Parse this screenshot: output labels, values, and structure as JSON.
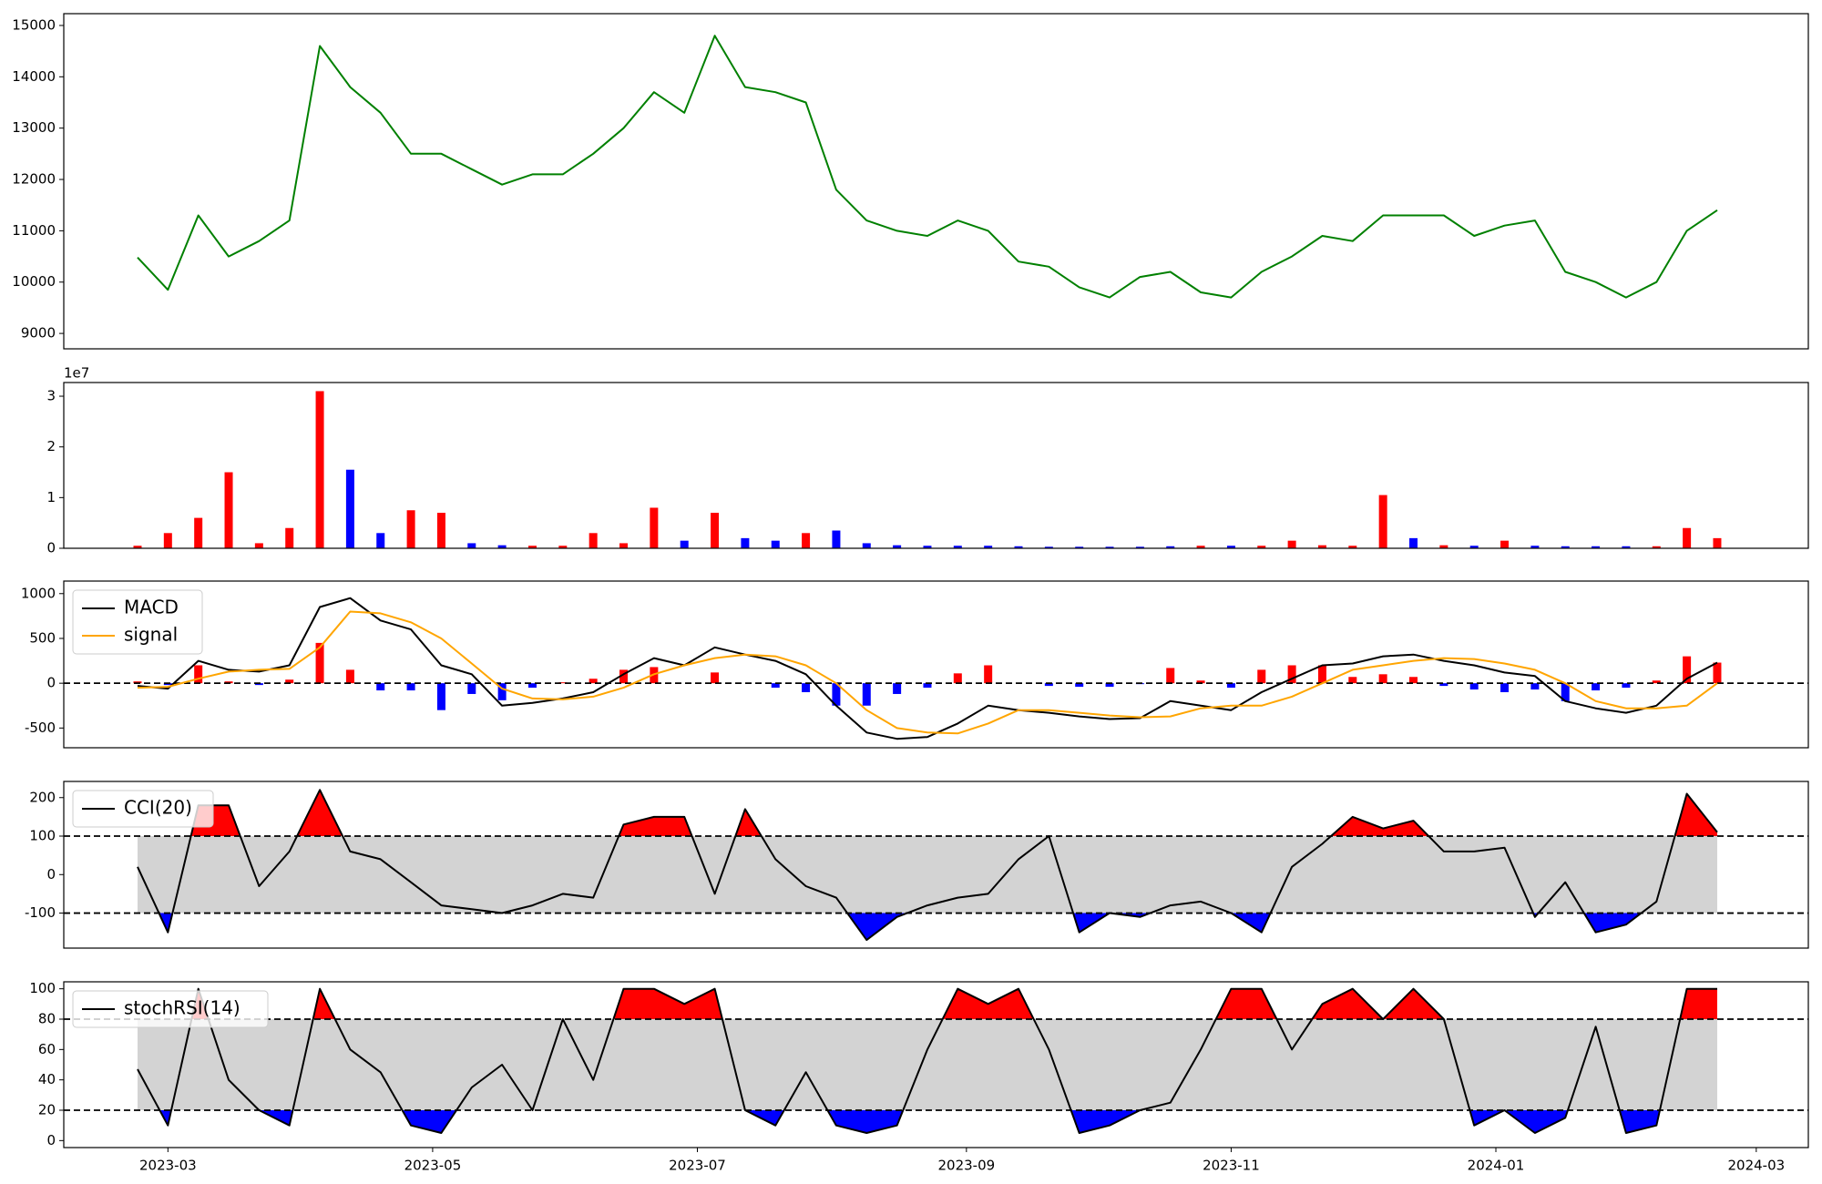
{
  "chart_data": [
    {
      "type": "line",
      "x": [
        "2023-02-22",
        "2023-03-01",
        "2023-03-08",
        "2023-03-15",
        "2023-03-22",
        "2023-03-29",
        "2023-04-05",
        "2023-04-12",
        "2023-04-19",
        "2023-04-26",
        "2023-05-03",
        "2023-05-10",
        "2023-05-17",
        "2023-05-24",
        "2023-05-31",
        "2023-06-07",
        "2023-06-14",
        "2023-06-21",
        "2023-06-28",
        "2023-07-05",
        "2023-07-12",
        "2023-07-19",
        "2023-07-26",
        "2023-08-02",
        "2023-08-09",
        "2023-08-16",
        "2023-08-23",
        "2023-08-30",
        "2023-09-06",
        "2023-09-13",
        "2023-09-20",
        "2023-09-27",
        "2023-10-04",
        "2023-10-11",
        "2023-10-18",
        "2023-10-25",
        "2023-11-01",
        "2023-11-08",
        "2023-11-15",
        "2023-11-22",
        "2023-11-29",
        "2023-12-06",
        "2023-12-13",
        "2023-12-20",
        "2023-12-27",
        "2024-01-03",
        "2024-01-10",
        "2024-01-17",
        "2024-01-24",
        "2024-01-31",
        "2024-02-07",
        "2024-02-14",
        "2024-02-21"
      ],
      "values": [
        10480,
        9850,
        11300,
        10500,
        10800,
        11200,
        14600,
        13800,
        13300,
        12500,
        12500,
        12200,
        11900,
        12100,
        12100,
        12500,
        13000,
        13700,
        13300,
        14800,
        13800,
        13700,
        13500,
        11800,
        11200,
        11000,
        10900,
        11200,
        11000,
        10400,
        10300,
        9900,
        9700,
        10100,
        10200,
        9800,
        9700,
        10200,
        10500,
        10900,
        10800,
        11300,
        11300,
        11300,
        10900,
        11100,
        11200,
        10200,
        10000,
        9700,
        10000,
        11000,
        11400
      ],
      "color": "green",
      "xlim": [
        "2023-02-05",
        "2024-03-13"
      ],
      "ylim": [
        8700,
        15230
      ],
      "yticks": [
        9000,
        10000,
        11000,
        12000,
        13000,
        14000,
        15000
      ]
    },
    {
      "type": "bar",
      "x": [
        "2023-02-22",
        "2023-03-01",
        "2023-03-08",
        "2023-03-15",
        "2023-03-22",
        "2023-03-29",
        "2023-04-05",
        "2023-04-12",
        "2023-04-19",
        "2023-04-26",
        "2023-05-03",
        "2023-05-10",
        "2023-05-17",
        "2023-05-24",
        "2023-05-31",
        "2023-06-07",
        "2023-06-14",
        "2023-06-21",
        "2023-06-28",
        "2023-07-05",
        "2023-07-12",
        "2023-07-19",
        "2023-07-26",
        "2023-08-02",
        "2023-08-09",
        "2023-08-16",
        "2023-08-23",
        "2023-08-30",
        "2023-09-06",
        "2023-09-13",
        "2023-09-20",
        "2023-09-27",
        "2023-10-04",
        "2023-10-11",
        "2023-10-18",
        "2023-10-25",
        "2023-11-01",
        "2023-11-08",
        "2023-11-15",
        "2023-11-22",
        "2023-11-29",
        "2023-12-06",
        "2023-12-13",
        "2023-12-20",
        "2023-12-27",
        "2024-01-03",
        "2024-01-10",
        "2024-01-17",
        "2024-01-24",
        "2024-01-31",
        "2024-02-07",
        "2024-02-14",
        "2024-02-21"
      ],
      "values": [
        0.05,
        0.3,
        0.6,
        1.5,
        0.1,
        0.4,
        3.1,
        1.55,
        0.3,
        0.75,
        0.7,
        0.1,
        0.06,
        0.05,
        0.05,
        0.3,
        0.1,
        0.8,
        0.15,
        0.7,
        0.2,
        0.15,
        0.3,
        0.35,
        0.1,
        0.06,
        0.05,
        0.05,
        0.05,
        0.04,
        0.03,
        0.03,
        0.03,
        0.03,
        0.04,
        0.05,
        0.05,
        0.05,
        0.15,
        0.06,
        0.05,
        1.05,
        0.2,
        0.06,
        0.05,
        0.15,
        0.05,
        0.04,
        0.04,
        0.04,
        0.04,
        0.4,
        0.2
      ],
      "colors": [
        "red",
        "red",
        "red",
        "red",
        "red",
        "red",
        "red",
        "blue",
        "blue",
        "red",
        "red",
        "blue",
        "blue",
        "red",
        "red",
        "red",
        "red",
        "red",
        "blue",
        "red",
        "blue",
        "blue",
        "red",
        "blue",
        "blue",
        "blue",
        "blue",
        "blue",
        "blue",
        "blue",
        "blue",
        "blue",
        "blue",
        "blue",
        "blue",
        "red",
        "blue",
        "red",
        "red",
        "red",
        "red",
        "red",
        "blue",
        "red",
        "blue",
        "red",
        "blue",
        "blue",
        "blue",
        "blue",
        "red",
        "red",
        "red"
      ],
      "offset_label": "1e7",
      "xlim": [
        "2023-02-05",
        "2024-03-13"
      ],
      "ylim": [
        0,
        3.27
      ],
      "yticks": [
        0,
        1,
        2,
        3
      ]
    },
    {
      "type": "macd",
      "x": [
        "2023-02-22",
        "2023-03-01",
        "2023-03-08",
        "2023-03-15",
        "2023-03-22",
        "2023-03-29",
        "2023-04-05",
        "2023-04-12",
        "2023-04-19",
        "2023-04-26",
        "2023-05-03",
        "2023-05-10",
        "2023-05-17",
        "2023-05-24",
        "2023-05-31",
        "2023-06-07",
        "2023-06-14",
        "2023-06-21",
        "2023-06-28",
        "2023-07-05",
        "2023-07-12",
        "2023-07-19",
        "2023-07-26",
        "2023-08-02",
        "2023-08-09",
        "2023-08-16",
        "2023-08-23",
        "2023-08-30",
        "2023-09-06",
        "2023-09-13",
        "2023-09-20",
        "2023-09-27",
        "2023-10-04",
        "2023-10-11",
        "2023-10-18",
        "2023-10-25",
        "2023-11-01",
        "2023-11-08",
        "2023-11-15",
        "2023-11-22",
        "2023-11-29",
        "2023-12-06",
        "2023-12-13",
        "2023-12-20",
        "2023-12-27",
        "2024-01-03",
        "2024-01-10",
        "2024-01-17",
        "2024-01-24",
        "2024-01-31",
        "2024-02-07",
        "2024-02-14",
        "2024-02-21"
      ],
      "series": [
        {
          "name": "MACD",
          "color": "black",
          "values": [
            -30,
            -60,
            250,
            150,
            130,
            200,
            850,
            950,
            700,
            600,
            200,
            100,
            -250,
            -220,
            -170,
            -100,
            100,
            280,
            200,
            400,
            320,
            250,
            100,
            -250,
            -550,
            -620,
            -600,
            -450,
            -250,
            -300,
            -330,
            -370,
            -400,
            -390,
            -200,
            -250,
            -300,
            -100,
            50,
            200,
            220,
            300,
            320,
            250,
            200,
            120,
            80,
            -200,
            -280,
            -330,
            -250,
            50,
            230
          ]
        },
        {
          "name": "signal",
          "color": "orange",
          "values": [
            -50,
            -40,
            50,
            130,
            150,
            160,
            400,
            800,
            780,
            680,
            500,
            220,
            -60,
            -170,
            -180,
            -150,
            -50,
            100,
            200,
            280,
            320,
            300,
            200,
            0,
            -300,
            -500,
            -550,
            -560,
            -450,
            -300,
            -300,
            -330,
            -360,
            -380,
            -370,
            -280,
            -250,
            -250,
            -150,
            0,
            150,
            200,
            250,
            280,
            270,
            220,
            150,
            0,
            -200,
            -280,
            -280,
            -250,
            0
          ]
        }
      ],
      "histogram": {
        "values": [
          20,
          -20,
          200,
          20,
          -20,
          40,
          450,
          150,
          -80,
          -80,
          -300,
          -120,
          -190,
          -50,
          10,
          50,
          150,
          180,
          0,
          120,
          0,
          -50,
          -100,
          -250,
          -250,
          -120,
          -50,
          110,
          200,
          0,
          -30,
          -40,
          -40,
          -10,
          170,
          30,
          -50,
          150,
          200,
          200,
          70,
          100,
          70,
          -30,
          -70,
          -100,
          -70,
          -200,
          -80,
          -50,
          30,
          300,
          230
        ],
        "up_color": "red",
        "down_color": "blue"
      },
      "hline": 0,
      "legend": "upper left",
      "xlim": [
        "2023-02-05",
        "2024-03-13"
      ],
      "ylim": [
        -720,
        1140
      ],
      "yticks": [
        -500,
        0,
        500,
        1000
      ]
    },
    {
      "type": "band-oscillator",
      "x": [
        "2023-02-22",
        "2023-03-01",
        "2023-03-08",
        "2023-03-15",
        "2023-03-22",
        "2023-03-29",
        "2023-04-05",
        "2023-04-12",
        "2023-04-19",
        "2023-04-26",
        "2023-05-03",
        "2023-05-10",
        "2023-05-17",
        "2023-05-24",
        "2023-05-31",
        "2023-06-07",
        "2023-06-14",
        "2023-06-21",
        "2023-06-28",
        "2023-07-05",
        "2023-07-12",
        "2023-07-19",
        "2023-07-26",
        "2023-08-02",
        "2023-08-09",
        "2023-08-16",
        "2023-08-23",
        "2023-08-30",
        "2023-09-06",
        "2023-09-13",
        "2023-09-20",
        "2023-09-27",
        "2023-10-04",
        "2023-10-11",
        "2023-10-18",
        "2023-10-25",
        "2023-11-01",
        "2023-11-08",
        "2023-11-15",
        "2023-11-22",
        "2023-11-29",
        "2023-12-06",
        "2023-12-13",
        "2023-12-20",
        "2023-12-27",
        "2024-01-03",
        "2024-01-10",
        "2024-01-17",
        "2024-01-24",
        "2024-01-31",
        "2024-02-07",
        "2024-02-14",
        "2024-02-21"
      ],
      "series": [
        {
          "name": "CCI(20)",
          "color": "black",
          "values": [
            20,
            -150,
            180,
            180,
            -30,
            60,
            220,
            60,
            40,
            -20,
            -80,
            -90,
            -100,
            -80,
            -50,
            -60,
            130,
            150,
            150,
            -50,
            170,
            40,
            -30,
            -60,
            -170,
            -110,
            -80,
            -60,
            -50,
            40,
            100,
            -150,
            -100,
            -110,
            -80,
            -70,
            -100,
            -150,
            20,
            80,
            150,
            120,
            140,
            60,
            60,
            70,
            -110,
            -20,
            -150,
            -130,
            -70,
            210,
            110
          ]
        }
      ],
      "upper": 100,
      "lower": -100,
      "band_fill": "lightgray",
      "upper_fill": "red",
      "lower_fill": "blue",
      "legend": "upper left",
      "xlim": [
        "2023-02-05",
        "2024-03-13"
      ],
      "ylim": [
        -191,
        242
      ],
      "yticks": [
        -100,
        0,
        100,
        200
      ]
    },
    {
      "type": "band-oscillator",
      "x": [
        "2023-02-22",
        "2023-03-01",
        "2023-03-08",
        "2023-03-15",
        "2023-03-22",
        "2023-03-29",
        "2023-04-05",
        "2023-04-12",
        "2023-04-19",
        "2023-04-26",
        "2023-05-03",
        "2023-05-10",
        "2023-05-17",
        "2023-05-24",
        "2023-05-31",
        "2023-06-07",
        "2023-06-14",
        "2023-06-21",
        "2023-06-28",
        "2023-07-05",
        "2023-07-12",
        "2023-07-19",
        "2023-07-26",
        "2023-08-02",
        "2023-08-09",
        "2023-08-16",
        "2023-08-23",
        "2023-08-30",
        "2023-09-06",
        "2023-09-13",
        "2023-09-20",
        "2023-09-27",
        "2023-10-04",
        "2023-10-11",
        "2023-10-18",
        "2023-10-25",
        "2023-11-01",
        "2023-11-08",
        "2023-11-15",
        "2023-11-22",
        "2023-11-29",
        "2023-12-06",
        "2023-12-13",
        "2023-12-20",
        "2023-12-27",
        "2024-01-03",
        "2024-01-10",
        "2024-01-17",
        "2024-01-24",
        "2024-01-31",
        "2024-02-07",
        "2024-02-14",
        "2024-02-21"
      ],
      "series": [
        {
          "name": "stochRSI(14)",
          "color": "black",
          "values": [
            47,
            10,
            100,
            40,
            20,
            10,
            100,
            60,
            45,
            10,
            5,
            35,
            50,
            20,
            80,
            40,
            100,
            100,
            90,
            100,
            20,
            10,
            45,
            10,
            5,
            10,
            60,
            100,
            90,
            100,
            60,
            5,
            10,
            20,
            25,
            60,
            100,
            100,
            60,
            90,
            100,
            80,
            100,
            80,
            10,
            20,
            5,
            15,
            75,
            5,
            10,
            100,
            100
          ]
        }
      ],
      "upper": 80,
      "lower": 20,
      "band_fill": "lightgray",
      "upper_fill": "red",
      "lower_fill": "blue",
      "legend": "upper left",
      "xlim": [
        "2023-02-05",
        "2024-03-13"
      ],
      "ylim": [
        -4.6,
        104.6
      ],
      "yticks": [
        0,
        20,
        40,
        60,
        80,
        100
      ],
      "xticks": [
        {
          "value": "2023-03-01",
          "label": "2023-03"
        },
        {
          "value": "2023-05-01",
          "label": "2023-05"
        },
        {
          "value": "2023-07-01",
          "label": "2023-07"
        },
        {
          "value": "2023-09-01",
          "label": "2023-09"
        },
        {
          "value": "2023-11-01",
          "label": "2023-11"
        },
        {
          "value": "2024-01-01",
          "label": "2024-01"
        },
        {
          "value": "2024-03-01",
          "label": "2024-03"
        }
      ]
    }
  ]
}
